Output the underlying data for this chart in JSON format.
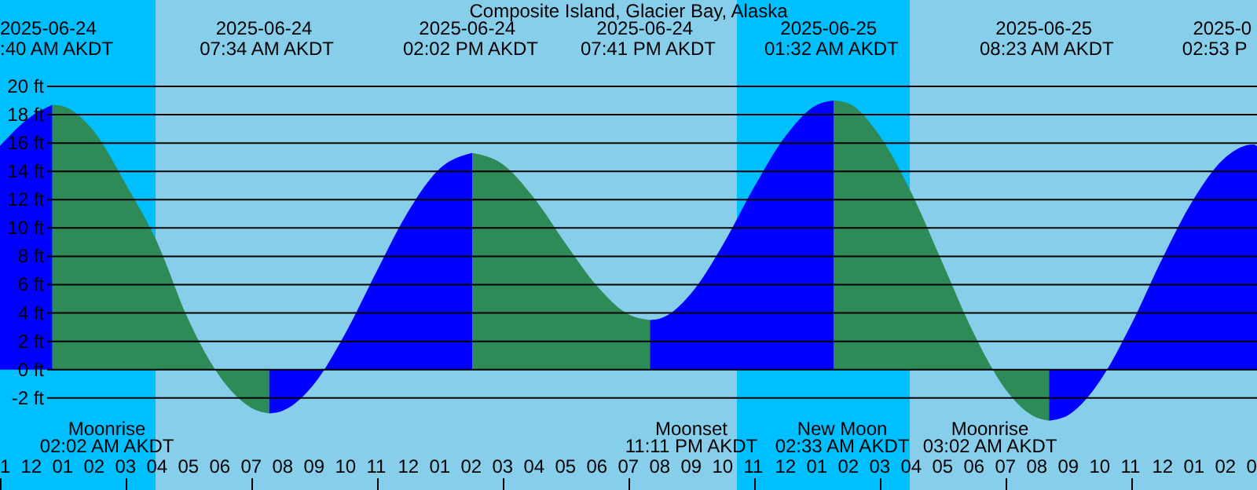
{
  "chart_data": {
    "type": "area",
    "title": "Composite Island, Glacier Bay, Alaska",
    "xlim": [
      "2025-06-23T23:00",
      "2025-06-25T15:00"
    ],
    "xticks": [
      {
        "value": "2025-06-23T23:00",
        "label": "1"
      },
      {
        "value": "2025-06-24T00:00",
        "label": "12"
      },
      {
        "value": "2025-06-24T01:00",
        "label": "01"
      },
      {
        "value": "2025-06-24T02:00",
        "label": "02"
      },
      {
        "value": "2025-06-24T03:00",
        "label": "03"
      },
      {
        "value": "2025-06-24T04:00",
        "label": "04"
      },
      {
        "value": "2025-06-24T05:00",
        "label": "05"
      },
      {
        "value": "2025-06-24T06:00",
        "label": "06"
      },
      {
        "value": "2025-06-24T07:00",
        "label": "07"
      },
      {
        "value": "2025-06-24T08:00",
        "label": "08"
      },
      {
        "value": "2025-06-24T09:00",
        "label": "09"
      },
      {
        "value": "2025-06-24T10:00",
        "label": "10"
      },
      {
        "value": "2025-06-24T11:00",
        "label": "11"
      },
      {
        "value": "2025-06-24T12:00",
        "label": "12"
      },
      {
        "value": "2025-06-24T13:00",
        "label": "01"
      },
      {
        "value": "2025-06-24T14:00",
        "label": "02"
      },
      {
        "value": "2025-06-24T15:00",
        "label": "03"
      },
      {
        "value": "2025-06-24T16:00",
        "label": "04"
      },
      {
        "value": "2025-06-24T17:00",
        "label": "05"
      },
      {
        "value": "2025-06-24T18:00",
        "label": "06"
      },
      {
        "value": "2025-06-24T19:00",
        "label": "07"
      },
      {
        "value": "2025-06-24T20:00",
        "label": "08"
      },
      {
        "value": "2025-06-24T21:00",
        "label": "09"
      },
      {
        "value": "2025-06-24T22:00",
        "label": "10"
      },
      {
        "value": "2025-06-24T23:00",
        "label": "11"
      },
      {
        "value": "2025-06-25T00:00",
        "label": "12"
      },
      {
        "value": "2025-06-25T01:00",
        "label": "01"
      },
      {
        "value": "2025-06-25T02:00",
        "label": "02"
      },
      {
        "value": "2025-06-25T03:00",
        "label": "03"
      },
      {
        "value": "2025-06-25T04:00",
        "label": "04"
      },
      {
        "value": "2025-06-25T05:00",
        "label": "05"
      },
      {
        "value": "2025-06-25T06:00",
        "label": "06"
      },
      {
        "value": "2025-06-25T07:00",
        "label": "07"
      },
      {
        "value": "2025-06-25T08:00",
        "label": "08"
      },
      {
        "value": "2025-06-25T09:00",
        "label": "09"
      },
      {
        "value": "2025-06-25T10:00",
        "label": "10"
      },
      {
        "value": "2025-06-25T11:00",
        "label": "11"
      },
      {
        "value": "2025-06-25T12:00",
        "label": "12"
      },
      {
        "value": "2025-06-25T13:00",
        "label": "01"
      },
      {
        "value": "2025-06-25T14:00",
        "label": "02"
      },
      {
        "value": "2025-06-25T15:00",
        "label": "0"
      }
    ],
    "ylim": [
      -8.5,
      26.1
    ],
    "yticks": [
      {
        "value": 20,
        "label": "20 ft"
      },
      {
        "value": 18,
        "label": "18 ft"
      },
      {
        "value": 16,
        "label": "16 ft"
      },
      {
        "value": 14,
        "label": "14 ft"
      },
      {
        "value": 12,
        "label": "12 ft"
      },
      {
        "value": 10,
        "label": "10 ft"
      },
      {
        "value": 8,
        "label": "8 ft"
      },
      {
        "value": 6,
        "label": "6 ft"
      },
      {
        "value": 4,
        "label": "4 ft"
      },
      {
        "value": 2,
        "label": "2 ft"
      },
      {
        "value": 0,
        "label": "0 ft"
      },
      {
        "value": -2,
        "label": "-2 ft"
      }
    ],
    "grid": "y",
    "bands": [
      {
        "axis": "x",
        "from": "2025-06-23T23:00",
        "to": "2025-06-24T03:57",
        "color": "#00bfff"
      },
      {
        "axis": "x",
        "from": "2025-06-24T22:27",
        "to": "2025-06-25T03:57",
        "color": "#00bfff"
      }
    ],
    "series": [
      {
        "color": "#0000ff",
        "x": [
          "2025-06-23T23:00",
          "2025-06-24T00:00",
          "2025-06-24T00:40"
        ],
        "values": [
          15.8,
          17.9,
          18.7
        ]
      },
      {
        "color": "#2e8b57",
        "x": [
          "2025-06-24T00:40",
          "2025-06-24T01:00",
          "2025-06-24T02:00",
          "2025-06-24T03:00",
          "2025-06-24T04:00",
          "2025-06-24T05:00",
          "2025-06-24T06:00",
          "2025-06-24T07:00",
          "2025-06-24T07:34"
        ],
        "values": [
          18.7,
          18.6,
          16.8,
          13.1,
          9.0,
          3.5,
          -0.5,
          -2.7,
          -3.1
        ]
      },
      {
        "color": "#0000ff",
        "x": [
          "2025-06-24T07:34",
          "2025-06-24T08:00",
          "2025-06-24T09:00",
          "2025-06-24T10:00",
          "2025-06-24T11:00",
          "2025-06-24T12:00",
          "2025-06-24T13:00",
          "2025-06-24T14:02"
        ],
        "values": [
          -3.1,
          -2.9,
          -1.0,
          2.6,
          7.0,
          11.2,
          14.2,
          15.3
        ]
      },
      {
        "color": "#2e8b57",
        "x": [
          "2025-06-24T14:02",
          "2025-06-24T15:00",
          "2025-06-24T16:00",
          "2025-06-24T17:00",
          "2025-06-24T18:00",
          "2025-06-24T19:00",
          "2025-06-24T19:41"
        ],
        "values": [
          15.3,
          14.5,
          12.1,
          8.9,
          5.9,
          3.9,
          3.5
        ]
      },
      {
        "color": "#0000ff",
        "x": [
          "2025-06-24T19:41",
          "2025-06-24T20:00",
          "2025-06-24T21:00",
          "2025-06-24T22:00",
          "2025-06-24T23:00",
          "2025-06-25T00:00",
          "2025-06-25T01:00",
          "2025-06-25T01:32"
        ],
        "values": [
          3.5,
          3.6,
          5.4,
          8.8,
          12.9,
          16.5,
          18.7,
          19.0
        ]
      },
      {
        "color": "#2e8b57",
        "x": [
          "2025-06-25T01:32",
          "2025-06-25T02:00",
          "2025-06-25T03:00",
          "2025-06-25T04:00",
          "2025-06-25T05:00",
          "2025-06-25T06:00",
          "2025-06-25T07:00",
          "2025-06-25T08:00",
          "2025-06-25T08:23"
        ],
        "values": [
          19.0,
          18.8,
          16.5,
          12.5,
          7.5,
          2.5,
          -1.4,
          -3.4,
          -3.6
        ]
      },
      {
        "color": "#0000ff",
        "x": [
          "2025-06-25T08:23",
          "2025-06-25T09:00",
          "2025-06-25T10:00",
          "2025-06-25T11:00",
          "2025-06-25T12:00",
          "2025-06-25T13:00",
          "2025-06-25T14:00",
          "2025-06-25T14:53",
          "2025-06-25T15:00"
        ],
        "values": [
          -3.6,
          -3.2,
          -0.8,
          3.2,
          7.9,
          12.1,
          15.0,
          15.9,
          15.8
        ]
      }
    ],
    "annotations": [
      "2025-06-24\n:40 AM AKDT",
      "2025-06-24\n07:34 AM AKDT",
      "2025-06-24\n02:02 PM AKDT",
      "2025-06-24\n07:41 PM AKDT",
      "2025-06-25\n01:32 AM AKDT",
      "2025-06-25\n08:23 AM AKDT",
      "2025-0\n02:53 P",
      "Moonrise\n02:02 AM AKDT",
      "Moonset\n11:11 PM AKDT",
      "New Moon\n02:33 AM AKDT",
      "Moonrise\n03:02 AM AKDT"
    ]
  }
}
